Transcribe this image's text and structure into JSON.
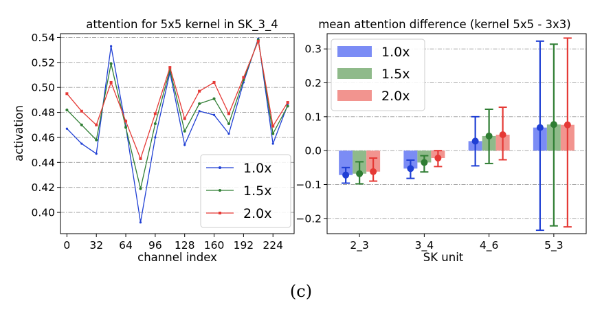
{
  "caption": "(c)",
  "colors": {
    "1.0x": "#1f3fd4",
    "1.5x": "#2e7d32",
    "2.0x": "#e53935"
  },
  "chart_data": [
    {
      "type": "line",
      "title": "attention for 5x5 kernel in SK_3_4",
      "xlabel": "channel index",
      "ylabel": "activation",
      "xlim": [
        -7,
        247
      ],
      "ylim": [
        0.383,
        0.543
      ],
      "xticks": [
        "0",
        "32",
        "64",
        "96",
        "128",
        "160",
        "192",
        "224"
      ],
      "yticks": [
        "0.40",
        "0.42",
        "0.44",
        "0.46",
        "0.48",
        "0.50",
        "0.52",
        "0.54"
      ],
      "grid": "horizontal dash-dot",
      "legend": "bottom-right",
      "x": [
        0,
        16,
        32,
        48,
        64,
        80,
        96,
        112,
        128,
        144,
        160,
        176,
        192,
        208,
        224,
        240
      ],
      "series": [
        {
          "name": "1.0x",
          "values": [
            0.467,
            0.455,
            0.447,
            0.533,
            0.469,
            0.392,
            0.46,
            0.512,
            0.454,
            0.481,
            0.478,
            0.463,
            0.504,
            0.539,
            0.455,
            0.486
          ]
        },
        {
          "name": "1.5x",
          "values": [
            0.482,
            0.47,
            0.458,
            0.519,
            0.468,
            0.419,
            0.471,
            0.514,
            0.465,
            0.487,
            0.491,
            0.471,
            0.506,
            0.538,
            0.463,
            0.485
          ]
        },
        {
          "name": "2.0x",
          "values": [
            0.495,
            0.481,
            0.47,
            0.504,
            0.473,
            0.443,
            0.479,
            0.516,
            0.475,
            0.497,
            0.504,
            0.479,
            0.508,
            0.537,
            0.469,
            0.488
          ]
        }
      ]
    },
    {
      "type": "bar",
      "title": "mean attention difference (kernel 5x5 - 3x3)",
      "xlabel": "SK unit",
      "ylabel": "",
      "categories": [
        "2_3",
        "3_4",
        "4_6",
        "5_3"
      ],
      "ylim": [
        -0.245,
        0.345
      ],
      "yticks": [
        "−0.2",
        "−0.1",
        "0.0",
        "0.1",
        "0.2",
        "0.3"
      ],
      "grid": "horizontal dash-dot",
      "legend": "top-left",
      "series": [
        {
          "name": "1.0x",
          "values": [
            -0.072,
            -0.053,
            0.028,
            0.068
          ],
          "err_low": [
            -0.096,
            -0.082,
            -0.045,
            -0.235
          ],
          "err_high": [
            -0.05,
            -0.028,
            0.1,
            0.323
          ]
        },
        {
          "name": "1.5x",
          "values": [
            -0.068,
            -0.035,
            0.043,
            0.077
          ],
          "err_low": [
            -0.098,
            -0.063,
            -0.038,
            -0.222
          ],
          "err_high": [
            -0.033,
            -0.015,
            0.122,
            0.314
          ]
        },
        {
          "name": "2.0x",
          "values": [
            -0.062,
            -0.022,
            0.047,
            0.076
          ],
          "err_low": [
            -0.09,
            -0.047,
            -0.027,
            -0.225
          ],
          "err_high": [
            -0.022,
            0.0,
            0.128,
            0.332
          ]
        }
      ]
    }
  ]
}
